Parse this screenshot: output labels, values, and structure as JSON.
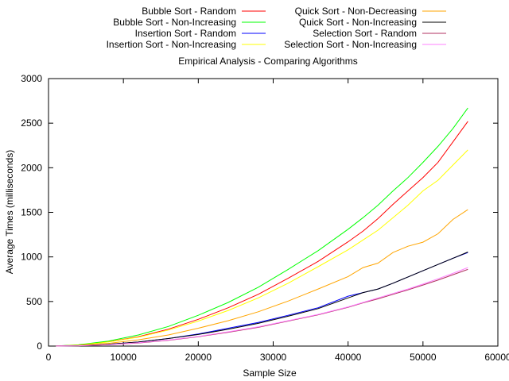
{
  "chart_data": {
    "type": "line",
    "title": "Empirical Analysis - Comparing Algorithms",
    "xlabel": "Sample Size",
    "ylabel": "Average Times (milliseconds)",
    "xlim": [
      0,
      60000
    ],
    "ylim": [
      0,
      3000
    ],
    "xticks": [
      0,
      10000,
      20000,
      30000,
      40000,
      50000,
      60000
    ],
    "yticks": [
      0,
      500,
      1000,
      1500,
      2000,
      2500,
      3000
    ],
    "grid": false,
    "legend_position": "top, outside plot, two columns",
    "x": [
      1000,
      4000,
      8000,
      12000,
      16000,
      20000,
      24000,
      28000,
      32000,
      36000,
      40000,
      42000,
      44000,
      46000,
      48000,
      50000,
      52000,
      54000,
      56000
    ],
    "series": [
      {
        "name": "Bubble Sort - Random",
        "color": "#ff0000",
        "values": [
          1,
          12,
          48,
          105,
          190,
          300,
          430,
          580,
          760,
          950,
          1170,
          1290,
          1430,
          1590,
          1740,
          1890,
          2060,
          2290,
          2520
        ]
      },
      {
        "name": "Bubble Sort - Non-Increasing",
        "color": "#00ff00",
        "values": [
          1,
          14,
          55,
          125,
          220,
          345,
          490,
          660,
          860,
          1070,
          1310,
          1440,
          1580,
          1740,
          1890,
          2060,
          2240,
          2440,
          2670
        ]
      },
      {
        "name": "Insertion Sort - Random",
        "color": "#0000ff",
        "values": [
          1,
          5,
          20,
          45,
          85,
          135,
          200,
          265,
          345,
          430,
          560,
          600,
          640,
          705,
          775,
          845,
          915,
          985,
          1050
        ]
      },
      {
        "name": "Insertion Sort - Non-Increasing",
        "color": "#ffff00",
        "values": [
          1,
          11,
          45,
          100,
          180,
          280,
          400,
          540,
          705,
          890,
          1080,
          1190,
          1300,
          1440,
          1580,
          1740,
          1860,
          2030,
          2200
        ]
      },
      {
        "name": "Quick Sort - Non-Decreasing",
        "color": "#ffa500",
        "values": [
          1,
          8,
          30,
          70,
          125,
          200,
          285,
          385,
          505,
          640,
          780,
          880,
          930,
          1050,
          1120,
          1165,
          1260,
          1420,
          1530
        ]
      },
      {
        "name": "Quick Sort - Non-Increasing",
        "color": "#000000",
        "values": [
          1,
          5,
          20,
          45,
          85,
          130,
          190,
          255,
          335,
          420,
          540,
          600,
          640,
          705,
          775,
          845,
          915,
          985,
          1055
        ]
      },
      {
        "name": "Selection Sort - Random",
        "color": "#b03060",
        "values": [
          1,
          4,
          15,
          35,
          65,
          105,
          155,
          210,
          280,
          350,
          435,
          485,
          530,
          580,
          630,
          685,
          740,
          800,
          860
        ]
      },
      {
        "name": "Selection Sort - Non-Increasing",
        "color": "#ff80ff",
        "values": [
          1,
          4,
          16,
          37,
          68,
          108,
          160,
          215,
          285,
          355,
          440,
          490,
          540,
          590,
          640,
          695,
          755,
          815,
          880
        ]
      }
    ]
  }
}
